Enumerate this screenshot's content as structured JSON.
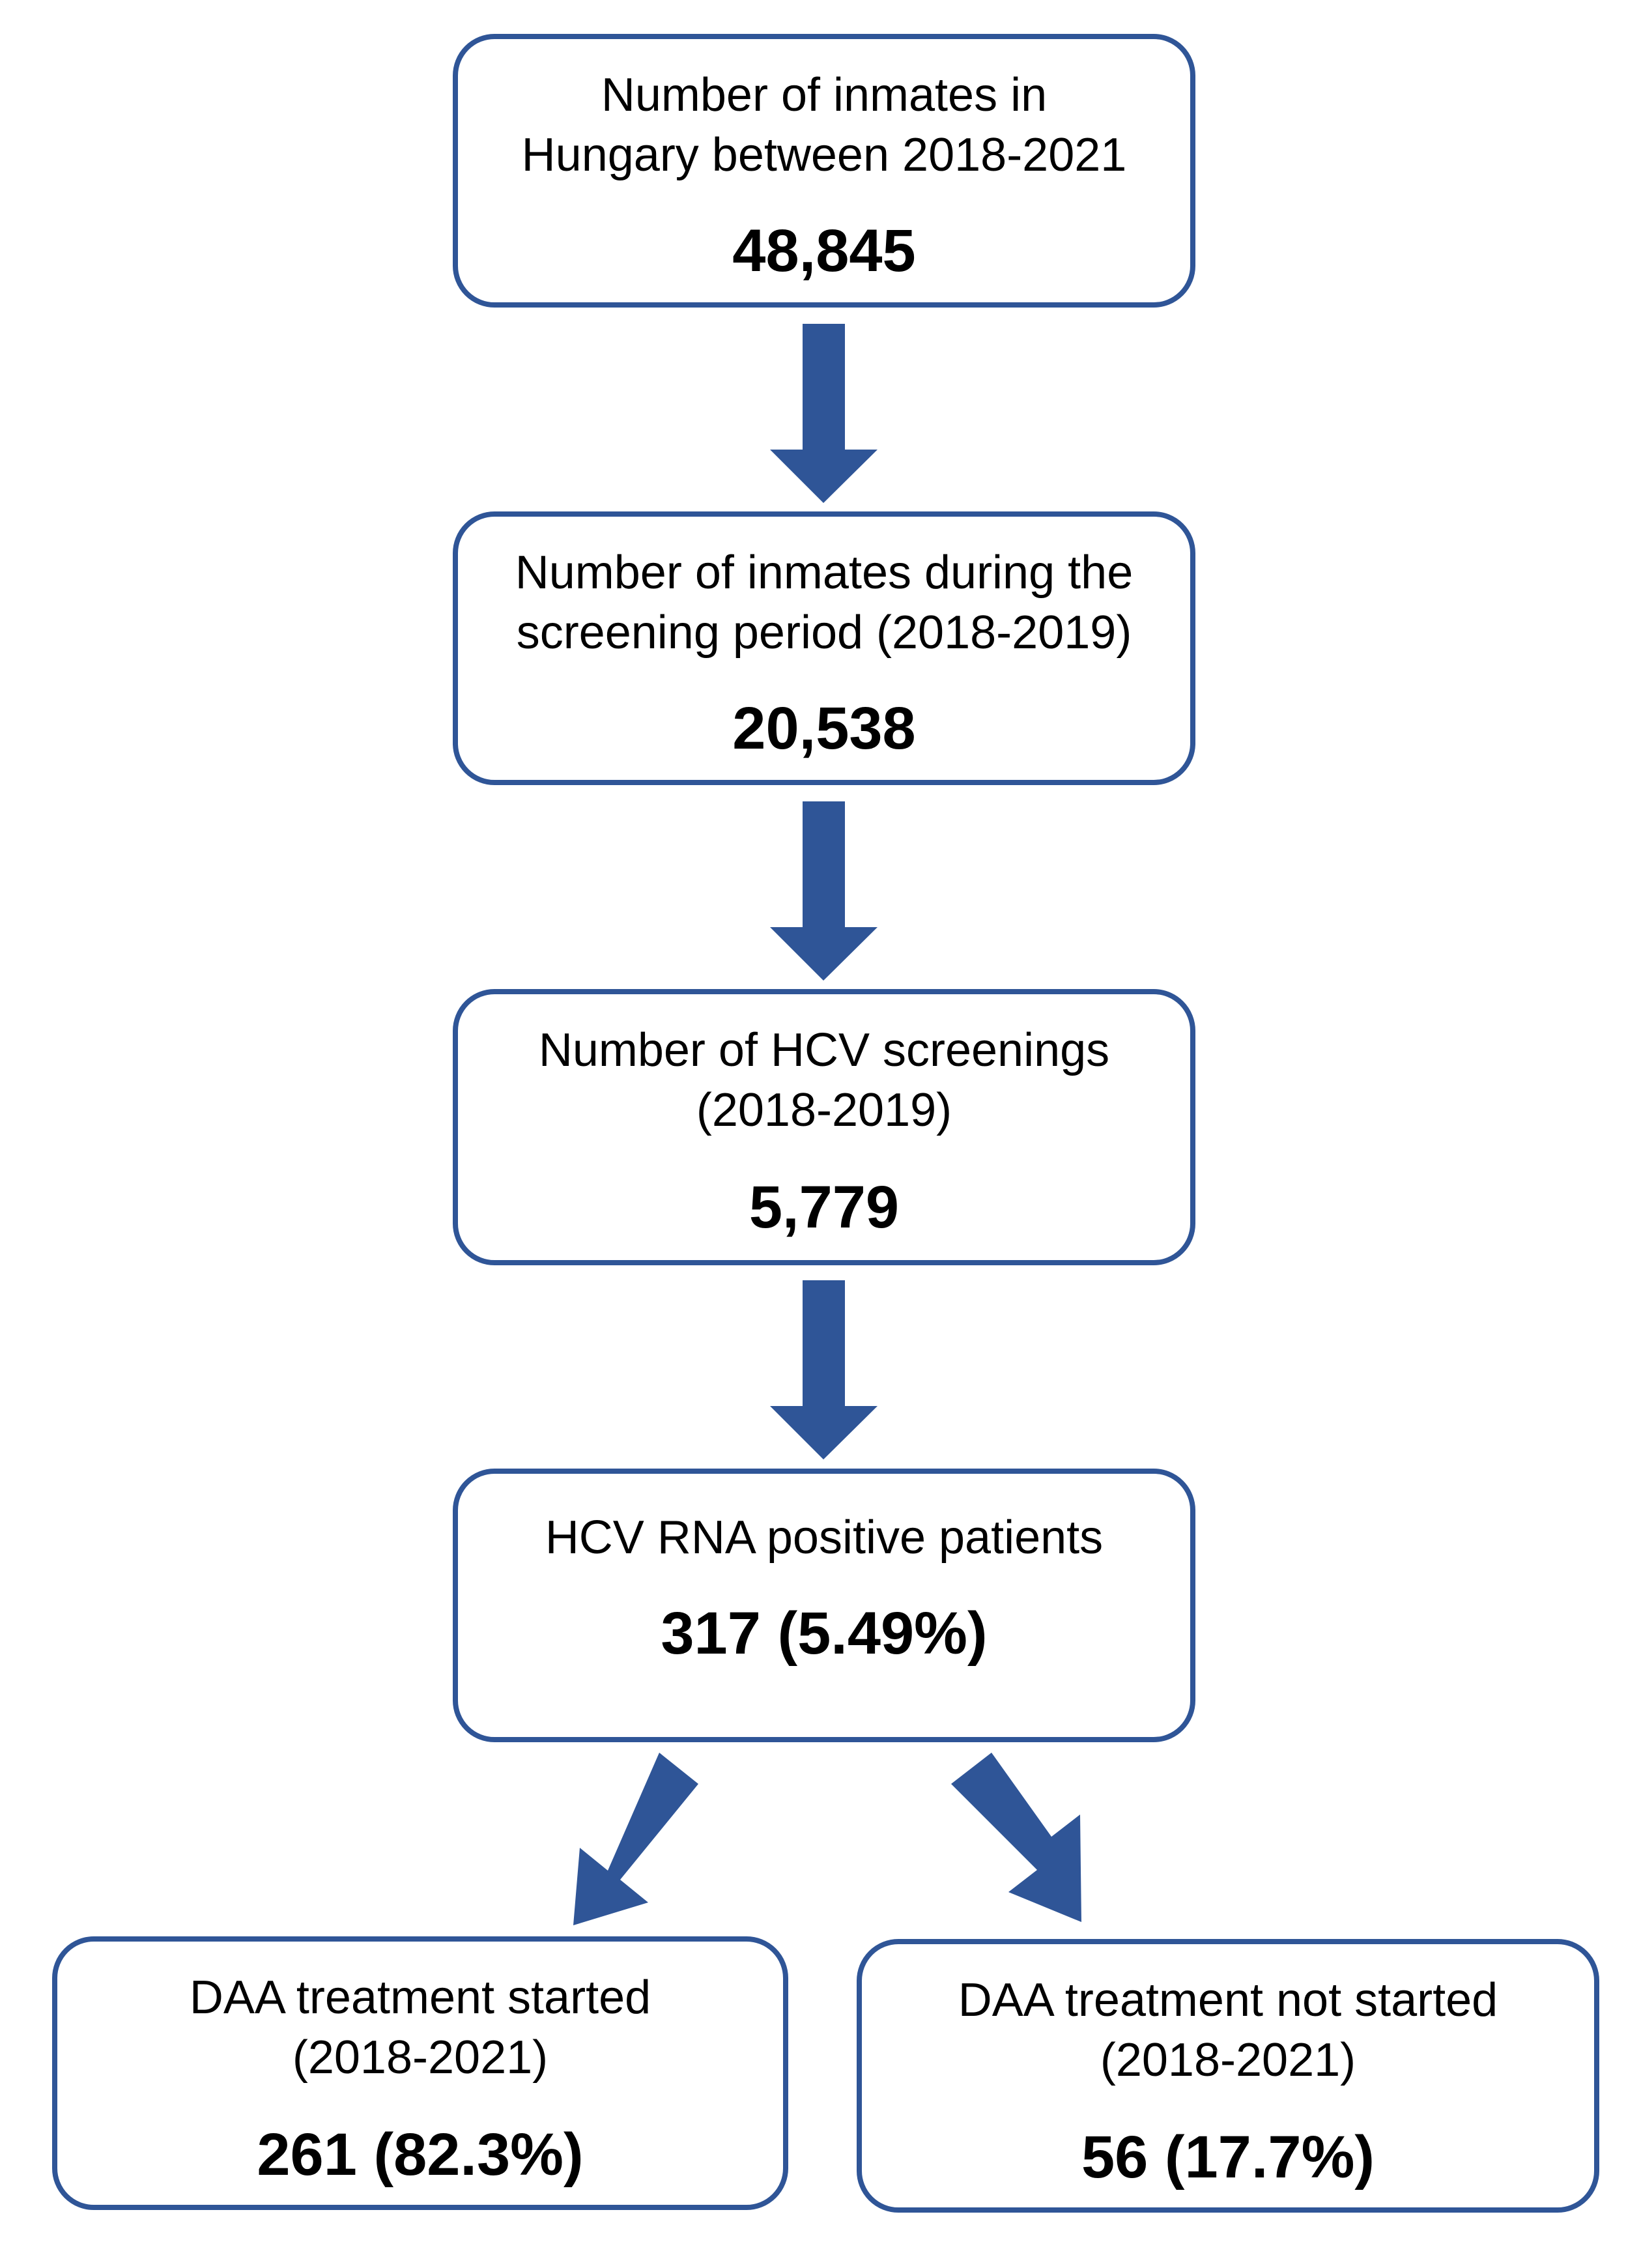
{
  "colors": {
    "box_border": "#2f5597",
    "arrow_fill": "#2f5597"
  },
  "boxes": {
    "total": {
      "label": "Number of inmates in\nHungary between 2018-2021",
      "value": "48,845"
    },
    "screening_period": {
      "label": "Number of inmates during the\nscreening period (2018-2019)",
      "value": "20,538"
    },
    "screenings": {
      "label": "Number of HCV screenings\n(2018-2019)",
      "value": "5,779"
    },
    "positive": {
      "label": "HCV RNA positive patients",
      "value": "317 (5.49%)"
    },
    "treatment_started": {
      "label": "DAA treatment started\n(2018-2021)",
      "value": "261 (82.3%)"
    },
    "treatment_not_started": {
      "label": "DAA treatment not started\n(2018-2021)",
      "value": "56 (17.7%)"
    }
  }
}
